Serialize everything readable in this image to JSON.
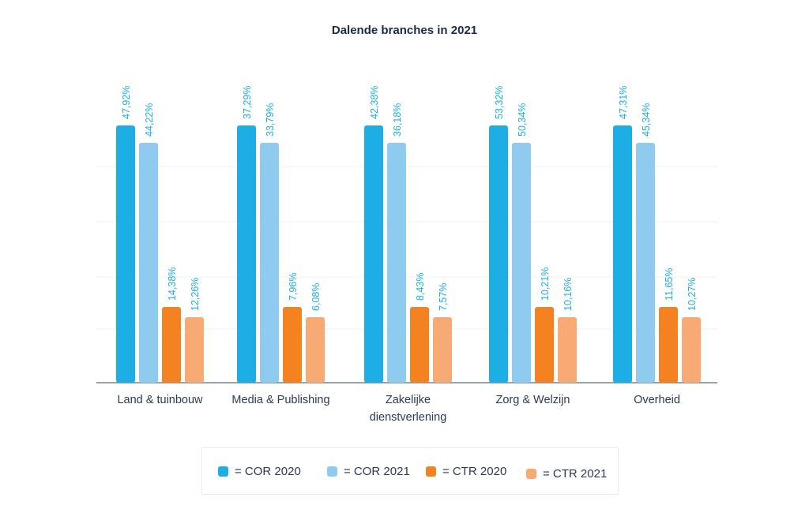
{
  "chart_data": {
    "type": "bar",
    "title": "Dalende branches in 2021",
    "categories": [
      "Land & tuinbouw",
      "Media & Publishing",
      "Zakelijke\ndienstverlening",
      "Zorg & Welzijn",
      "Overheid"
    ],
    "series": [
      {
        "name": "COR 2020",
        "color": "#1eaee6",
        "values": [
          47.92,
          37.29,
          42.38,
          53.32,
          47.31
        ],
        "labels": [
          "47,92%",
          "37,29%",
          "42,38%",
          "53,32%",
          "47,31%"
        ]
      },
      {
        "name": "COR 2021",
        "color": "#8ecbee",
        "values": [
          44.22,
          33.79,
          36.18,
          50.34,
          45.34
        ],
        "labels": [
          "44,22%",
          "33,79%",
          "36,18%",
          "50,34%",
          "45,34%"
        ]
      },
      {
        "name": "CTR 2020",
        "color": "#f58220",
        "values": [
          14.38,
          7.96,
          8.43,
          10.21,
          11.65
        ],
        "labels": [
          "14,38%",
          "7,96%",
          "8,43%",
          "10,21%",
          "11,65%"
        ]
      },
      {
        "name": "CTR 2021",
        "color": "#f7aa74",
        "values": [
          12.26,
          6.08,
          7.57,
          10.16,
          10.27
        ],
        "labels": [
          "12,26%",
          "6,08%",
          "7,57%",
          "10,16%",
          "10,27%"
        ]
      }
    ],
    "legend": [
      {
        "label": "= COR 2020",
        "color": "#1eaee6"
      },
      {
        "label": "= COR 2021",
        "color": "#8ecbee"
      },
      {
        "label": "= CTR 2020",
        "color": "#f58220"
      },
      {
        "label": "= CTR 2021",
        "color": "#f7aa74"
      }
    ],
    "grid": true,
    "legend_position": "bottom",
    "label_color": "#1eaee6"
  }
}
